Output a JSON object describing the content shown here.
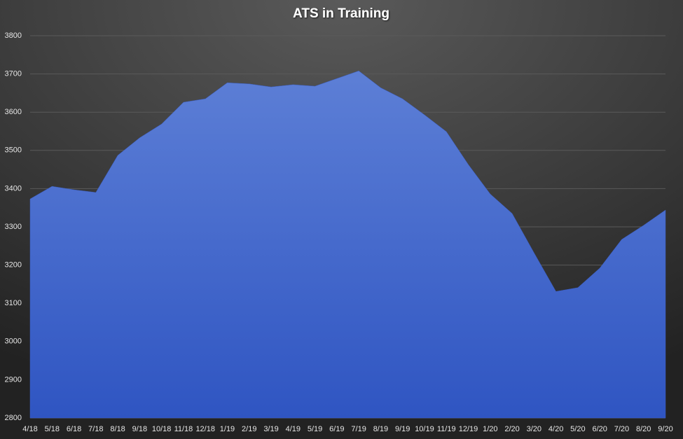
{
  "chart_data": {
    "type": "area",
    "title": "ATS in Training",
    "categories": [
      "4/18",
      "5/18",
      "6/18",
      "7/18",
      "8/18",
      "9/18",
      "10/18",
      "11/18",
      "12/18",
      "1/19",
      "2/19",
      "3/19",
      "4/19",
      "5/19",
      "6/19",
      "7/19",
      "8/19",
      "9/19",
      "10/19",
      "11/19",
      "12/19",
      "1/20",
      "2/20",
      "3/20",
      "4/20",
      "5/20",
      "6/20",
      "7/20",
      "8/20",
      "9/20"
    ],
    "values": [
      3373,
      3406,
      3397,
      3390,
      3487,
      3533,
      3569,
      3626,
      3635,
      3677,
      3674,
      3666,
      3672,
      3668,
      3688,
      3708,
      3664,
      3635,
      3593,
      3549,
      3463,
      3386,
      3335,
      3232,
      3131,
      3141,
      3192,
      3267,
      3304,
      3344
    ],
    "color": "#3f63cc",
    "ylim": [
      2800,
      3800
    ],
    "yticks": [
      2800,
      2900,
      3000,
      3100,
      3200,
      3300,
      3400,
      3500,
      3600,
      3700,
      3800
    ],
    "grid": true
  }
}
